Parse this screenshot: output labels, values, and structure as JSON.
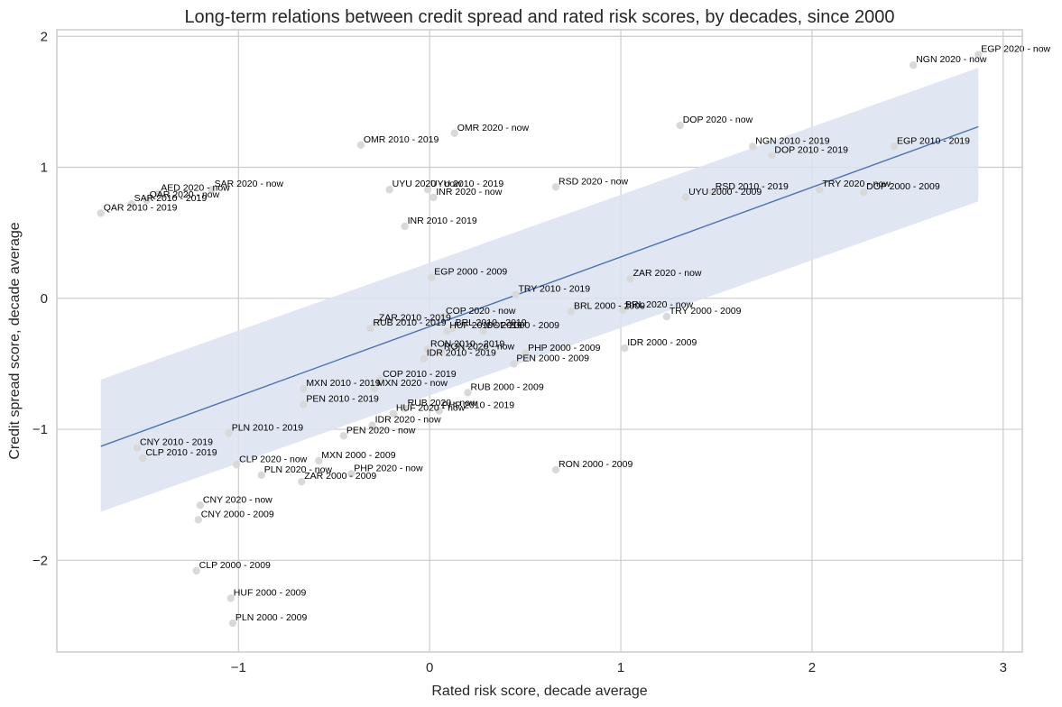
{
  "chart_data": {
    "type": "scatter",
    "title": "Long-term relations between credit spread and rated risk scores, by decades, since 2000",
    "xlabel": "Rated risk score, decade average",
    "ylabel": "Credit spread score, decade average",
    "xlim": [
      -1.95,
      3.1
    ],
    "ylim": [
      -2.7,
      2.05
    ],
    "xticks": [
      -1,
      0,
      1,
      2,
      3
    ],
    "yticks": [
      -2,
      -1,
      0,
      1,
      2
    ],
    "grid": true,
    "legend": "none",
    "colors": {
      "point": "#d9d9d9",
      "regression_line": "#4c72b0",
      "confidence_band": "#dce3f0",
      "grid": "#cccccc",
      "background": "#ffffff"
    },
    "regression": {
      "x": [
        -1.72,
        2.87
      ],
      "y": [
        -1.13,
        1.31
      ],
      "band_lower": [
        -1.63,
        0.74
      ],
      "band_upper": [
        -0.62,
        1.76
      ]
    },
    "points": [
      {
        "label": "EGP 2020 - now",
        "x": 2.87,
        "y": 1.86
      },
      {
        "label": "NGN 2020 - now",
        "x": 2.53,
        "y": 1.78
      },
      {
        "label": "DOP 2020 - now",
        "x": 1.31,
        "y": 1.32
      },
      {
        "label": "NGN 2010 - 2019",
        "x": 1.69,
        "y": 1.16
      },
      {
        "label": "DOP 2010 - 2019",
        "x": 1.79,
        "y": 1.09
      },
      {
        "label": "EGP 2010 - 2019",
        "x": 2.43,
        "y": 1.16
      },
      {
        "label": "OMR 2020 - now",
        "x": 0.13,
        "y": 1.26
      },
      {
        "label": "OMR 2010 - 2019",
        "x": -0.36,
        "y": 1.17
      },
      {
        "label": "RSD 2020 - now",
        "x": 0.66,
        "y": 0.85
      },
      {
        "label": "RSD 2010 - 2019",
        "x": 1.48,
        "y": 0.81
      },
      {
        "label": "UYU 2000 - 2009",
        "x": 1.34,
        "y": 0.77
      },
      {
        "label": "TRY 2020 - now",
        "x": 2.04,
        "y": 0.83
      },
      {
        "label": "DOP 2000 - 2009",
        "x": 2.27,
        "y": 0.81
      },
      {
        "label": "UYU 2020 - now",
        "x": -0.21,
        "y": 0.83
      },
      {
        "label": "UYU 2010 - 2019",
        "x": -0.01,
        "y": 0.83
      },
      {
        "label": "INR 2020 - now",
        "x": 0.02,
        "y": 0.77
      },
      {
        "label": "INR 2010 - 2019",
        "x": -0.13,
        "y": 0.55
      },
      {
        "label": "SAR 2020 - now",
        "x": -1.14,
        "y": 0.83
      },
      {
        "label": "AED 2020 - now",
        "x": -1.42,
        "y": 0.8
      },
      {
        "label": "QAR 2020 - now",
        "x": -1.48,
        "y": 0.75
      },
      {
        "label": "SAR 2010 - 2019",
        "x": -1.56,
        "y": 0.72
      },
      {
        "label": "QAR 2010 - 2019",
        "x": -1.72,
        "y": 0.65
      },
      {
        "label": "EGP 2000 - 2009",
        "x": 0.01,
        "y": 0.16
      },
      {
        "label": "ZAR 2020 - now",
        "x": 1.05,
        "y": 0.15
      },
      {
        "label": "TRY 2010 - 2019",
        "x": 0.45,
        "y": 0.03
      },
      {
        "label": "BRL 2000 - 2009",
        "x": 0.74,
        "y": -0.1
      },
      {
        "label": "BRL 2020 - now",
        "x": 1.01,
        "y": -0.09
      },
      {
        "label": "TRY 2000 - 2009",
        "x": 1.24,
        "y": -0.14
      },
      {
        "label": "COP 2020 - now",
        "x": 0.07,
        "y": -0.14
      },
      {
        "label": "ZAR 2010 - 2019",
        "x": -0.28,
        "y": -0.19
      },
      {
        "label": "RUB 2010 - 2019",
        "x": -0.31,
        "y": -0.23
      },
      {
        "label": "BRL 2010 - 2019",
        "x": 0.12,
        "y": -0.23
      },
      {
        "label": "HUF 2010 - 2019",
        "x": 0.09,
        "y": -0.25
      },
      {
        "label": "COP 2000 - 2009",
        "x": 0.28,
        "y": -0.25
      },
      {
        "label": "IDR 2000 - 2009",
        "x": 1.02,
        "y": -0.38
      },
      {
        "label": "RON 2010 - 2019",
        "x": -0.01,
        "y": -0.39
      },
      {
        "label": "RON 2020 - now",
        "x": 0.06,
        "y": -0.41
      },
      {
        "label": "IDR 2010 - 2019",
        "x": -0.03,
        "y": -0.46
      },
      {
        "label": "PHP 2000 - 2009",
        "x": 0.5,
        "y": -0.42
      },
      {
        "label": "PEN 2000 - 2009",
        "x": 0.44,
        "y": -0.5
      },
      {
        "label": "COP 2010 - 2019",
        "x": -0.26,
        "y": -0.62
      },
      {
        "label": "MXN 2010 - 2019",
        "x": -0.66,
        "y": -0.69
      },
      {
        "label": "MXN 2020 - now",
        "x": -0.29,
        "y": -0.69
      },
      {
        "label": "RUB 2000 - 2009",
        "x": 0.2,
        "y": -0.72
      },
      {
        "label": "PEN 2010 - 2019",
        "x": -0.66,
        "y": -0.81
      },
      {
        "label": "RUB 2020 - now",
        "x": -0.13,
        "y": -0.84
      },
      {
        "label": "PHP 2010 - 2019",
        "x": 0.05,
        "y": -0.86
      },
      {
        "label": "HUF 2020 - now",
        "x": -0.19,
        "y": -0.88
      },
      {
        "label": "IDR 2020 - now",
        "x": -0.3,
        "y": -0.97
      },
      {
        "label": "PEN 2020 - now",
        "x": -0.45,
        "y": -1.05
      },
      {
        "label": "PLN 2010 - 2019",
        "x": -1.05,
        "y": -1.03
      },
      {
        "label": "CNY 2010 - 2019",
        "x": -1.53,
        "y": -1.14
      },
      {
        "label": "CLP 2010 - 2019",
        "x": -1.5,
        "y": -1.22
      },
      {
        "label": "CLP 2020 - now",
        "x": -1.01,
        "y": -1.27
      },
      {
        "label": "MXN 2000 - 2009",
        "x": -0.58,
        "y": -1.24
      },
      {
        "label": "PLN 2020 - now",
        "x": -0.88,
        "y": -1.35
      },
      {
        "label": "PHP 2020 - now",
        "x": -0.41,
        "y": -1.34
      },
      {
        "label": "ZAR 2000 - 2009",
        "x": -0.67,
        "y": -1.4
      },
      {
        "label": "RON 2000 - 2009",
        "x": 0.66,
        "y": -1.31
      },
      {
        "label": "CNY 2020 - now",
        "x": -1.2,
        "y": -1.58
      },
      {
        "label": "CNY 2000 - 2009",
        "x": -1.21,
        "y": -1.69
      },
      {
        "label": "CLP 2000 - 2009",
        "x": -1.22,
        "y": -2.08
      },
      {
        "label": "HUF 2000 - 2009",
        "x": -1.04,
        "y": -2.29
      },
      {
        "label": "PLN 2000 - 2009",
        "x": -1.03,
        "y": -2.48
      }
    ]
  }
}
